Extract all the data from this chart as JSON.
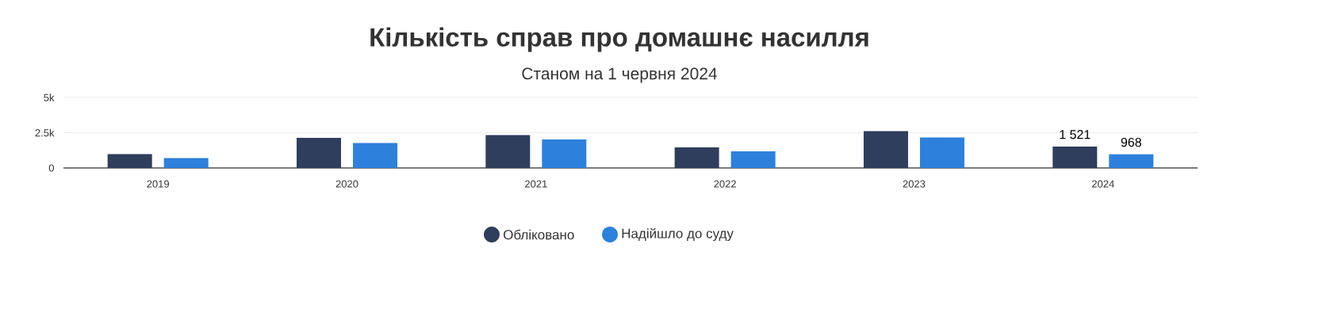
{
  "chart_data": {
    "type": "bar",
    "title": "Кількість справ про домашнє насилля",
    "subtitle": "Станом на 1 червня 2024",
    "categories": [
      "2019",
      "2020",
      "2021",
      "2022",
      "2023",
      "2024"
    ],
    "series": [
      {
        "name": "Обліковано",
        "color": "#2e3e5c",
        "values": [
          980,
          2140,
          2330,
          1460,
          2610,
          1521
        ],
        "value_labels": [
          null,
          null,
          null,
          null,
          null,
          "1 521"
        ]
      },
      {
        "name": "Надійшло до суду",
        "color": "#2d80dc",
        "values": [
          700,
          1770,
          2020,
          1180,
          2160,
          968
        ],
        "value_labels": [
          null,
          null,
          null,
          null,
          null,
          "968"
        ]
      }
    ],
    "ylim": [
      0,
      5000
    ],
    "yticks": [
      {
        "value": 0,
        "label": "0"
      },
      {
        "value": 2500,
        "label": "2.5k"
      },
      {
        "value": 5000,
        "label": "5k"
      }
    ],
    "grid": "y",
    "legend": "bottom",
    "marker": "circle"
  }
}
